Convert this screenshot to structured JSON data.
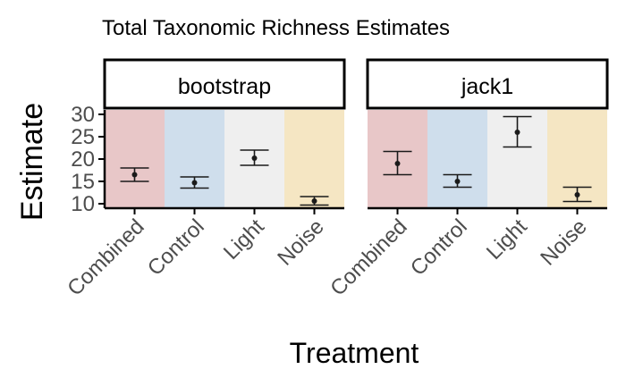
{
  "chart_data": {
    "type": "scatter",
    "title": "Total Taxonomic Richness Estimates",
    "xlabel": "Treatment",
    "ylabel": "Estimate",
    "categories": [
      "Combined",
      "Control",
      "Light",
      "Noise"
    ],
    "category_colors": [
      "#e8c7c8",
      "#cfdeec",
      "#efefef",
      "#f5e6c3"
    ],
    "ylim": [
      9,
      31
    ],
    "yticks": [
      10,
      15,
      20,
      25,
      30
    ],
    "grid": false,
    "legend": "none",
    "panels": [
      {
        "name": "bootstrap",
        "points": [
          {
            "x": "Combined",
            "y": 16.5,
            "ymin": 15.0,
            "ymax": 18.0
          },
          {
            "x": "Control",
            "y": 14.7,
            "ymin": 13.5,
            "ymax": 16.0
          },
          {
            "x": "Light",
            "y": 20.2,
            "ymin": 18.6,
            "ymax": 22.0
          },
          {
            "x": "Noise",
            "y": 10.6,
            "ymin": 9.7,
            "ymax": 11.6
          }
        ]
      },
      {
        "name": "jack1",
        "points": [
          {
            "x": "Combined",
            "y": 19.0,
            "ymin": 16.5,
            "ymax": 21.7
          },
          {
            "x": "Control",
            "y": 15.0,
            "ymin": 13.7,
            "ymax": 16.5
          },
          {
            "x": "Light",
            "y": 26.0,
            "ymin": 22.7,
            "ymax": 29.5
          },
          {
            "x": "Noise",
            "y": 12.0,
            "ymin": 10.5,
            "ymax": 13.7
          }
        ]
      }
    ]
  }
}
